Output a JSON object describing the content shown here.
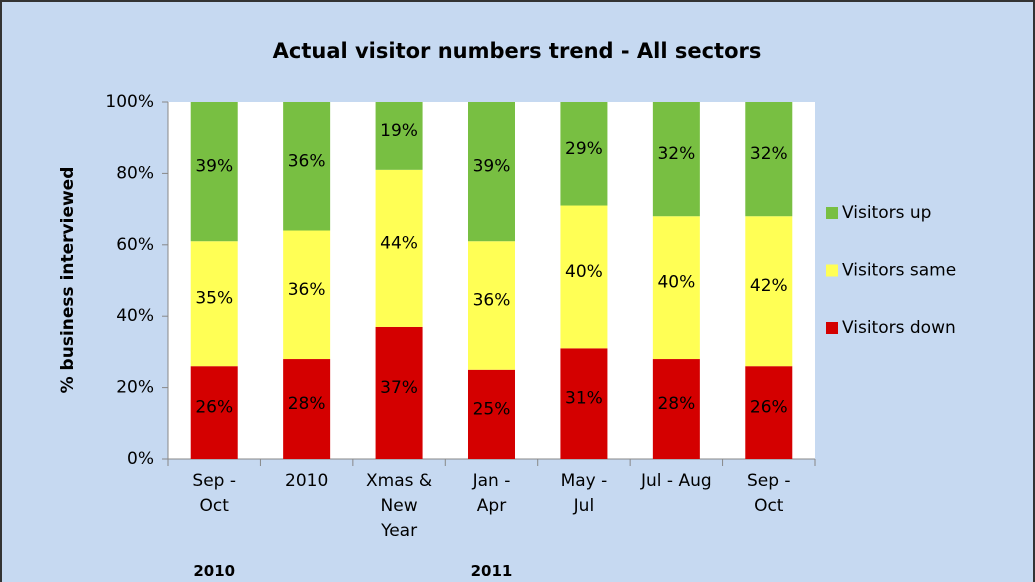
{
  "chart_data": {
    "type": "stacked_bar",
    "title": "Actual visitor numbers trend - All sectors",
    "y_label": "% business interviewed",
    "categories": [
      "Sep -\nOct",
      "2010",
      "Xmas &\nNew\nYear",
      "Jan -\nApr",
      "May -\nJul",
      "Jul - Aug",
      "Sep -\nOct"
    ],
    "category_groups": [
      "2010",
      null,
      null,
      "2011",
      null,
      null,
      null
    ],
    "series": [
      {
        "name": "Visitors down",
        "color": "#d40000",
        "values": [
          26,
          28,
          37,
          25,
          31,
          28,
          26
        ],
        "value_labels": [
          "26%",
          "28%",
          "37%",
          "25%",
          "31%",
          "28%",
          "26%"
        ]
      },
      {
        "name": "Visitors same",
        "color": "#ffff55",
        "values": [
          35,
          36,
          44,
          36,
          40,
          40,
          42
        ],
        "value_labels": [
          "35%",
          "36%",
          "44%",
          "36%",
          "40%",
          "40%",
          "42%"
        ]
      },
      {
        "name": "Visitors up",
        "color": "#78bf42",
        "values": [
          39,
          36,
          19,
          39,
          29,
          32,
          32
        ],
        "value_labels": [
          "39%",
          "36%",
          "19%",
          "39%",
          "29%",
          "32%",
          "32%"
        ]
      }
    ],
    "ylim": [
      0,
      100
    ],
    "yticks": [
      {
        "value": 0,
        "label": "0%"
      },
      {
        "value": 20,
        "label": "20%"
      },
      {
        "value": 40,
        "label": "40%"
      },
      {
        "value": 60,
        "label": "60%"
      },
      {
        "value": 80,
        "label": "80%"
      },
      {
        "value": 100,
        "label": "100%"
      }
    ],
    "legend": "right"
  }
}
